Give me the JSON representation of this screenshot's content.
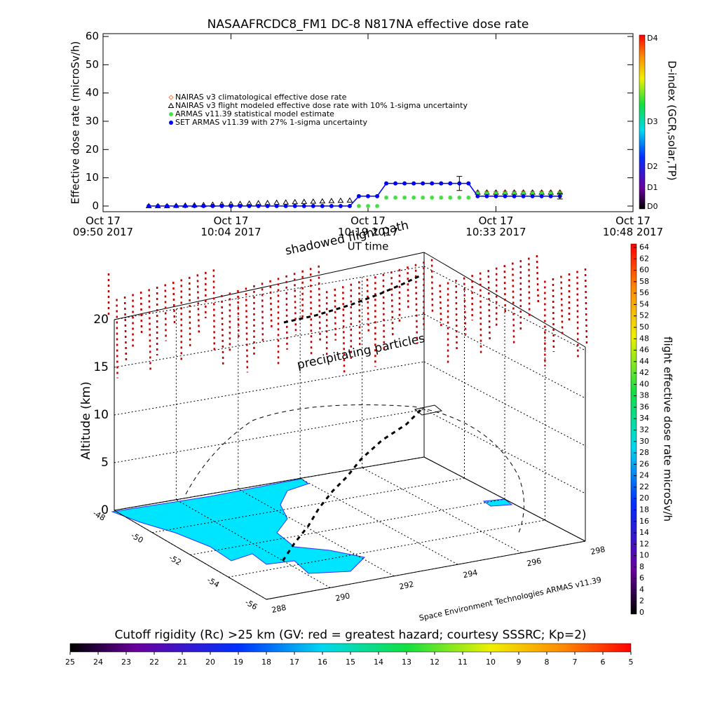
{
  "chart_data": [
    {
      "type": "scatter",
      "title": "NASAAFRCDC8_FM1 DC-8    N817NA effective dose rate",
      "ylabel": "Effective dose rate (microSv/h)",
      "xlabel": "UT time",
      "xlim": [
        "2017-10-17T09:50",
        "2017-10-17T10:48"
      ],
      "xticks": [
        {
          "value": "2017-10-17T09:50",
          "label": "Oct 17\n09:50 2017"
        },
        {
          "value": "2017-10-17T10:04",
          "label": "Oct 17\n10:04 2017"
        },
        {
          "value": "2017-10-17T10:19",
          "label": "Oct 17\n10:19 2017"
        },
        {
          "value": "2017-10-17T10:33",
          "label": "Oct 17\n10:33 2017"
        },
        {
          "value": "2017-10-17T10:48",
          "label": "Oct 17\n10:48 2017"
        }
      ],
      "ylim": [
        -2,
        61
      ],
      "yticks": [
        0,
        10,
        20,
        30,
        40,
        50,
        60
      ],
      "series": [
        {
          "name": "NAIRAS v3 climatological effective dose rate",
          "color": "#ff7f3f",
          "marker": "diamond",
          "x": [
            "2017-10-17T10:31",
            "2017-10-17T10:32",
            "2017-10-17T10:33",
            "2017-10-17T10:34",
            "2017-10-17T10:35",
            "2017-10-17T10:36",
            "2017-10-17T10:37",
            "2017-10-17T10:38",
            "2017-10-17T10:39",
            "2017-10-17T10:40"
          ],
          "values": [
            5,
            5,
            5,
            5,
            5,
            5,
            5,
            5,
            5,
            5
          ]
        },
        {
          "name": "NAIRAS v3 flight modeled effective dose rate with 10% 1-sigma uncertainty",
          "color": "#000000",
          "marker": "triangle",
          "x": [
            "2017-10-17T09:55",
            "2017-10-17T09:56",
            "2017-10-17T09:57",
            "2017-10-17T09:58",
            "2017-10-17T09:59",
            "2017-10-17T10:00",
            "2017-10-17T10:01",
            "2017-10-17T10:02",
            "2017-10-17T10:03",
            "2017-10-17T10:04",
            "2017-10-17T10:05",
            "2017-10-17T10:06",
            "2017-10-17T10:07",
            "2017-10-17T10:08",
            "2017-10-17T10:09",
            "2017-10-17T10:10",
            "2017-10-17T10:11",
            "2017-10-17T10:12",
            "2017-10-17T10:13",
            "2017-10-17T10:14",
            "2017-10-17T10:15",
            "2017-10-17T10:16",
            "2017-10-17T10:17",
            "2017-10-17T10:31",
            "2017-10-17T10:32",
            "2017-10-17T10:33",
            "2017-10-17T10:34",
            "2017-10-17T10:35",
            "2017-10-17T10:36",
            "2017-10-17T10:37",
            "2017-10-17T10:38",
            "2017-10-17T10:39",
            "2017-10-17T10:40"
          ],
          "values": [
            0,
            0,
            0,
            0.1,
            0.2,
            0.3,
            0.4,
            0.5,
            0.6,
            0.7,
            0.8,
            0.9,
            1.0,
            1.1,
            1.2,
            1.3,
            1.4,
            1.5,
            1.6,
            1.7,
            1.8,
            1.9,
            2.0,
            4.8,
            4.8,
            4.8,
            4.8,
            4.8,
            4.8,
            4.8,
            4.8,
            4.8,
            4.8
          ]
        },
        {
          "name": "ARMAS v11.39 statistical model estimate",
          "color": "#3fdf3f",
          "marker": "asterisk",
          "x": [
            "2017-10-17T10:18",
            "2017-10-17T10:19",
            "2017-10-17T10:20",
            "2017-10-17T10:21",
            "2017-10-17T10:22",
            "2017-10-17T10:23",
            "2017-10-17T10:24",
            "2017-10-17T10:25",
            "2017-10-17T10:26",
            "2017-10-17T10:27",
            "2017-10-17T10:28",
            "2017-10-17T10:29",
            "2017-10-17T10:30",
            "2017-10-17T10:31",
            "2017-10-17T10:32",
            "2017-10-17T10:33",
            "2017-10-17T10:34",
            "2017-10-17T10:35",
            "2017-10-17T10:36",
            "2017-10-17T10:37",
            "2017-10-17T10:38",
            "2017-10-17T10:39",
            "2017-10-17T10:40"
          ],
          "values": [
            0,
            0,
            0,
            3,
            3,
            3,
            3,
            3,
            3,
            3,
            3,
            3,
            3,
            4.5,
            4.5,
            4.5,
            4.5,
            4.5,
            4.5,
            4.5,
            4.5,
            4.5,
            4.5
          ]
        },
        {
          "name": "SET ARMAS v11.39 with 27% 1-sigma uncertainty",
          "color": "#0000ff",
          "marker": "circle-line",
          "x": [
            "2017-10-17T09:55",
            "2017-10-17T09:56",
            "2017-10-17T09:57",
            "2017-10-17T09:58",
            "2017-10-17T09:59",
            "2017-10-17T10:00",
            "2017-10-17T10:01",
            "2017-10-17T10:02",
            "2017-10-17T10:03",
            "2017-10-17T10:04",
            "2017-10-17T10:05",
            "2017-10-17T10:06",
            "2017-10-17T10:07",
            "2017-10-17T10:08",
            "2017-10-17T10:09",
            "2017-10-17T10:10",
            "2017-10-17T10:11",
            "2017-10-17T10:12",
            "2017-10-17T10:13",
            "2017-10-17T10:14",
            "2017-10-17T10:15",
            "2017-10-17T10:16",
            "2017-10-17T10:17",
            "2017-10-17T10:18",
            "2017-10-17T10:19",
            "2017-10-17T10:20",
            "2017-10-17T10:21",
            "2017-10-17T10:22",
            "2017-10-17T10:23",
            "2017-10-17T10:24",
            "2017-10-17T10:25",
            "2017-10-17T10:26",
            "2017-10-17T10:27",
            "2017-10-17T10:28",
            "2017-10-17T10:29",
            "2017-10-17T10:30",
            "2017-10-17T10:31",
            "2017-10-17T10:32",
            "2017-10-17T10:33",
            "2017-10-17T10:34",
            "2017-10-17T10:35",
            "2017-10-17T10:36",
            "2017-10-17T10:37",
            "2017-10-17T10:38",
            "2017-10-17T10:39",
            "2017-10-17T10:40"
          ],
          "values": [
            0,
            0,
            0,
            0,
            0,
            0,
            0,
            0,
            0,
            0,
            0,
            0,
            0,
            0,
            0,
            0,
            0,
            0,
            0,
            0,
            0,
            0,
            0,
            3.5,
            3.5,
            3.5,
            8,
            8,
            8,
            8,
            8,
            8,
            8,
            8,
            8,
            8,
            3.5,
            3.5,
            3.5,
            3.5,
            3.5,
            3.5,
            3.5,
            3.5,
            3.5,
            3.5
          ],
          "errors": [
            null,
            null,
            null,
            null,
            null,
            null,
            null,
            null,
            null,
            null,
            null,
            null,
            null,
            null,
            null,
            null,
            null,
            null,
            null,
            null,
            null,
            null,
            null,
            null,
            null,
            null,
            null,
            null,
            null,
            null,
            null,
            null,
            null,
            null,
            2.5,
            null,
            null,
            null,
            null,
            null,
            null,
            null,
            null,
            null,
            null,
            1
          ]
        }
      ]
    },
    {
      "type": "colorbar",
      "label": "D-index (GCR,solar,TP)",
      "ticks": [
        "D0",
        "D1",
        "D2",
        "D3",
        "D4"
      ]
    },
    {
      "type": "surface3d",
      "texts": [
        "shadowed flight path",
        "precipitating particles"
      ],
      "zlabel": "Altitude (km)",
      "zticks": [
        0,
        5,
        10,
        15,
        20
      ],
      "yticks": [
        -48,
        -50,
        -52,
        -54,
        -56
      ],
      "xticks": [
        288,
        290,
        292,
        294,
        296,
        298
      ],
      "footer": "Space Environment Technologies ARMAS v11.39"
    },
    {
      "type": "colorbar",
      "label": "flight effective dose rate microSv/h",
      "ticks": [
        0,
        2,
        4,
        6,
        8,
        10,
        12,
        14,
        16,
        18,
        20,
        22,
        24,
        26,
        28,
        30,
        32,
        34,
        36,
        38,
        40,
        42,
        44,
        46,
        48,
        50,
        52,
        54,
        56,
        58,
        60,
        62,
        64
      ]
    },
    {
      "type": "colorbar",
      "label": "Cutoff rigidity (Rc) >25 km (GV: red = greatest hazard; courtesy SSSRC; Kp=2)",
      "ticks": [
        25,
        24,
        23,
        22,
        21,
        20,
        19,
        18,
        17,
        16,
        15,
        14,
        13,
        12,
        11,
        10,
        9,
        8,
        7,
        6,
        5
      ]
    }
  ]
}
